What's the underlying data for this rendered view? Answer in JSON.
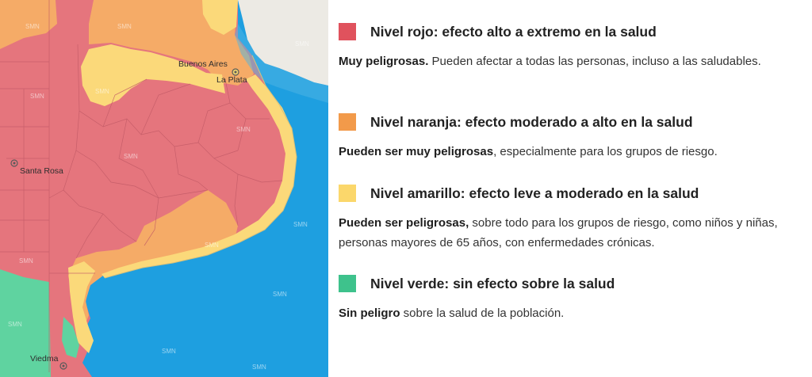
{
  "map": {
    "watermark_text": "SMN",
    "colors": {
      "rojo": "#e5757d",
      "naranja": "#f5ab67",
      "amarillo": "#fbd97a",
      "verde": "#5fd3a0",
      "mar": "#1e9fe0",
      "uruguay": "#eceae4"
    },
    "cities": [
      {
        "name": "Buenos Aires"
      },
      {
        "name": "La Plata"
      },
      {
        "name": "Santa Rosa"
      },
      {
        "name": "Viedma"
      }
    ]
  },
  "legend": [
    {
      "color": "#e0525d",
      "title": "Nivel rojo: efecto alto a extremo en la salud",
      "desc_bold": "Muy peligrosas.",
      "desc_rest": " Pueden afectar a todas las personas, incluso a las saludables."
    },
    {
      "color": "#f29a4a",
      "title": "Nivel naranja: efecto moderado a alto en la salud",
      "desc_bold": "Pueden ser muy peligrosas",
      "desc_rest": ", especialmente para los grupos de riesgo."
    },
    {
      "color": "#fbd76b",
      "title": "Nivel amarillo: efecto leve a moderado en la salud",
      "desc_bold": "Pueden ser peligrosas,",
      "desc_rest": " sobre todo para los grupos de riesgo, como niños y niñas, personas mayores de 65 años, con enfermedades crónicas."
    },
    {
      "color": "#3ec28c",
      "title": "Nivel verde: sin efecto sobre la salud",
      "desc_bold": "Sin peligro",
      "desc_rest": " sobre la salud de la población."
    }
  ]
}
